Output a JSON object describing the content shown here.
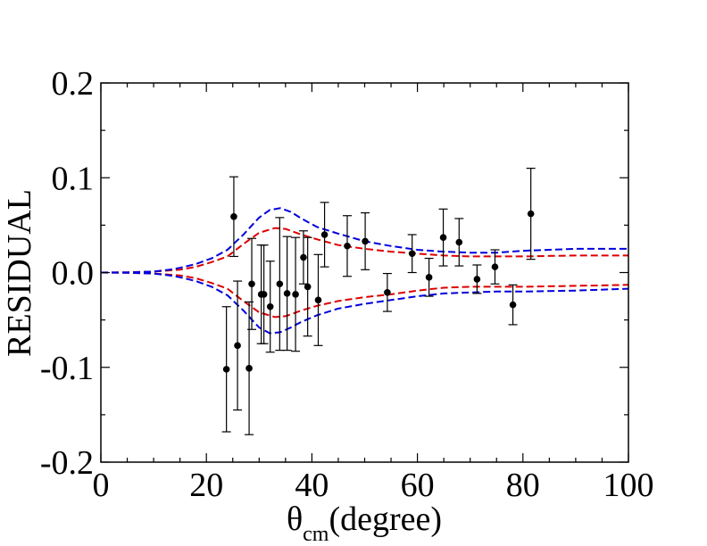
{
  "chart_data": {
    "type": "scatter",
    "title": "",
    "xlabel": {
      "symbol": "θ",
      "subscript": "cm",
      "rest": "(degree)"
    },
    "ylabel": "RESIDUAL",
    "xlim": [
      0,
      100
    ],
    "ylim": [
      -0.2,
      0.2
    ],
    "x_ticks": [
      0,
      20,
      40,
      60,
      80,
      100
    ],
    "x_tick_labels": [
      "0",
      "20",
      "40",
      "60",
      "80",
      "100"
    ],
    "y_ticks": [
      -0.2,
      -0.1,
      0.0,
      0.1,
      0.2
    ],
    "y_tick_labels": [
      "-0.2",
      "-0.1",
      "0.0",
      "0.1",
      "0.2"
    ],
    "x_minor_step": 5,
    "y_minor_step": 0.05,
    "grid": false,
    "colors": {
      "points": "#000000",
      "red_band": "#dd0000",
      "blue_band": "#0000dd"
    },
    "points": [
      {
        "x": 23.8,
        "y": -0.102,
        "err": 0.066
      },
      {
        "x": 25.2,
        "y": 0.059,
        "err": 0.042
      },
      {
        "x": 25.9,
        "y": -0.077,
        "err": 0.068
      },
      {
        "x": 28.1,
        "y": -0.101,
        "err": 0.07
      },
      {
        "x": 28.6,
        "y": -0.012,
        "err": 0.048
      },
      {
        "x": 30.4,
        "y": -0.023,
        "err": 0.052
      },
      {
        "x": 30.9,
        "y": -0.023,
        "err": 0.052
      },
      {
        "x": 32.1,
        "y": -0.036,
        "err": 0.048
      },
      {
        "x": 33.9,
        "y": -0.012,
        "err": 0.07
      },
      {
        "x": 35.3,
        "y": -0.022,
        "err": 0.06
      },
      {
        "x": 36.9,
        "y": -0.023,
        "err": 0.06
      },
      {
        "x": 38.4,
        "y": 0.016,
        "err": 0.028
      },
      {
        "x": 39.2,
        "y": -0.015,
        "err": 0.052
      },
      {
        "x": 41.2,
        "y": -0.029,
        "err": 0.048
      },
      {
        "x": 42.4,
        "y": 0.04,
        "err": 0.034
      },
      {
        "x": 46.7,
        "y": 0.028,
        "err": 0.032
      },
      {
        "x": 50.1,
        "y": 0.033,
        "err": 0.03
      },
      {
        "x": 54.3,
        "y": -0.021,
        "err": 0.02
      },
      {
        "x": 59.0,
        "y": 0.02,
        "err": 0.02
      },
      {
        "x": 62.2,
        "y": -0.005,
        "err": 0.02
      },
      {
        "x": 64.9,
        "y": 0.037,
        "err": 0.03
      },
      {
        "x": 67.9,
        "y": 0.032,
        "err": 0.025
      },
      {
        "x": 71.3,
        "y": -0.007,
        "err": 0.015
      },
      {
        "x": 74.7,
        "y": 0.006,
        "err": 0.018
      },
      {
        "x": 78.1,
        "y": -0.034,
        "err": 0.021
      },
      {
        "x": 81.5,
        "y": 0.062,
        "err": 0.048
      }
    ],
    "series": [
      {
        "name": "red-upper",
        "color": "#dd0000",
        "dash": "dashed",
        "x": [
          0,
          5,
          10,
          15,
          18,
          21,
          24,
          27,
          30,
          33,
          35,
          38,
          41,
          45,
          50,
          55,
          60,
          65,
          70,
          80,
          90,
          100
        ],
        "y": [
          0,
          0.0003,
          0.001,
          0.003,
          0.006,
          0.011,
          0.017,
          0.03,
          0.042,
          0.047,
          0.046,
          0.04,
          0.035,
          0.029,
          0.025,
          0.022,
          0.02,
          0.018,
          0.017,
          0.017,
          0.018,
          0.018
        ]
      },
      {
        "name": "red-lower",
        "color": "#dd0000",
        "dash": "dashed",
        "x": [
          0,
          5,
          10,
          15,
          18,
          21,
          24,
          27,
          30,
          33,
          35,
          38,
          41,
          45,
          50,
          55,
          60,
          65,
          70,
          80,
          90,
          100
        ],
        "y": [
          0,
          -0.0003,
          -0.001,
          -0.003,
          -0.006,
          -0.011,
          -0.017,
          -0.03,
          -0.042,
          -0.047,
          -0.046,
          -0.04,
          -0.035,
          -0.03,
          -0.026,
          -0.023,
          -0.019,
          -0.016,
          -0.015,
          -0.015,
          -0.014,
          -0.013
        ]
      },
      {
        "name": "blue-upper",
        "color": "#0000dd",
        "dash": "dashed",
        "x": [
          0,
          5,
          10,
          13,
          15,
          18,
          21,
          24,
          27,
          30,
          32,
          34,
          36,
          38,
          41,
          45,
          50,
          55,
          60,
          65,
          70,
          75,
          80,
          90,
          100
        ],
        "y": [
          0,
          0.0002,
          0.001,
          0.003,
          0.005,
          0.009,
          0.015,
          0.024,
          0.04,
          0.058,
          0.066,
          0.068,
          0.064,
          0.057,
          0.048,
          0.041,
          0.033,
          0.028,
          0.024,
          0.022,
          0.021,
          0.021,
          0.023,
          0.025,
          0.025
        ]
      },
      {
        "name": "blue-lower",
        "color": "#0000dd",
        "dash": "dashed",
        "x": [
          0,
          5,
          10,
          13,
          15,
          18,
          21,
          24,
          27,
          30,
          32,
          34,
          36,
          38,
          41,
          45,
          50,
          55,
          60,
          65,
          70,
          75,
          80,
          90,
          100
        ],
        "y": [
          0,
          -0.0002,
          -0.001,
          -0.003,
          -0.005,
          -0.009,
          -0.015,
          -0.024,
          -0.04,
          -0.058,
          -0.064,
          -0.063,
          -0.058,
          -0.052,
          -0.045,
          -0.038,
          -0.033,
          -0.029,
          -0.025,
          -0.022,
          -0.021,
          -0.02,
          -0.02,
          -0.019,
          -0.017
        ]
      }
    ]
  }
}
